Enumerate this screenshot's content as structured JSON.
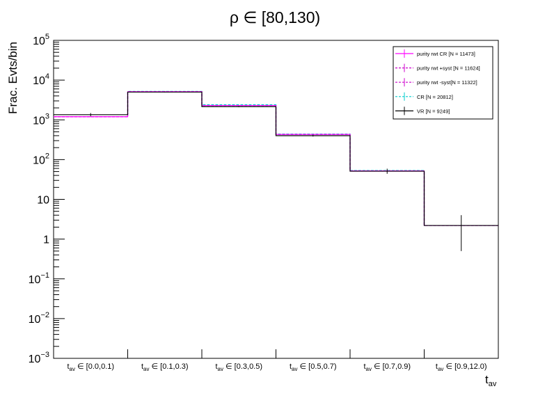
{
  "chart_data": {
    "type": "step",
    "title": "ρ ∈ [80,130)",
    "ylabel": "Frac. Evts/bin",
    "xlabel": "t",
    "xlabel_sub": "av",
    "yscale": "log",
    "ylim": [
      0.001,
      100000
    ],
    "grid": false,
    "legend_position": "top-right",
    "y_ticks": [
      {
        "value": 0.001,
        "base": "10",
        "exp": "−3",
        "plain": ""
      },
      {
        "value": 0.01,
        "base": "10",
        "exp": "−2",
        "plain": ""
      },
      {
        "value": 0.1,
        "base": "10",
        "exp": "−1",
        "plain": ""
      },
      {
        "value": 1,
        "base": "",
        "exp": "",
        "plain": "1"
      },
      {
        "value": 10,
        "base": "",
        "exp": "",
        "plain": "10"
      },
      {
        "value": 100,
        "base": "10",
        "exp": "2",
        "plain": ""
      },
      {
        "value": 1000,
        "base": "10",
        "exp": "3",
        "plain": ""
      },
      {
        "value": 10000,
        "base": "10",
        "exp": "4",
        "plain": ""
      },
      {
        "value": 100000,
        "base": "10",
        "exp": "5",
        "plain": ""
      }
    ],
    "categories": [
      {
        "sub": "av",
        "range": "[0.0,0.1)"
      },
      {
        "sub": "av",
        "range": "[0.1,0.3)"
      },
      {
        "sub": "av",
        "range": "[0.3,0.5)"
      },
      {
        "sub": "av",
        "range": "[0.5,0.7)"
      },
      {
        "sub": "av",
        "range": "[0.7,0.9)"
      },
      {
        "sub": "av",
        "range": "[0.9,12.0)"
      }
    ],
    "series": [
      {
        "name": "purity rwt CR [N = 11473]",
        "color": "#ff00ff",
        "dash": "",
        "values": [
          1200,
          5100,
          2300,
          430,
          52,
          2.2
        ]
      },
      {
        "name": "purity rwt +syst [N = 11624]",
        "color": "#cc00cc",
        "dash": "4,2",
        "values": [
          1200,
          5100,
          2300,
          430,
          52,
          2.2
        ]
      },
      {
        "name": "purity rwt -syst[N = 11322]",
        "color": "#cc00cc",
        "dash": "4,2",
        "values": [
          1200,
          5100,
          2300,
          430,
          52,
          2.2
        ]
      },
      {
        "name": "CR [N = 20812]",
        "color": "#00cccc",
        "dash": "4,2",
        "values": [
          1200,
          5200,
          2400,
          440,
          53,
          2.2
        ]
      },
      {
        "name": "VR [N = 9249]",
        "color": "#000000",
        "dash": "",
        "values": [
          1350,
          5000,
          2150,
          400,
          51,
          2.2
        ],
        "errors": [
          [
            1230,
            1480
          ],
          [
            4900,
            5100
          ],
          [
            2080,
            2230
          ],
          [
            380,
            420
          ],
          [
            44,
            59
          ],
          [
            0.5,
            4.0
          ]
        ]
      }
    ]
  }
}
